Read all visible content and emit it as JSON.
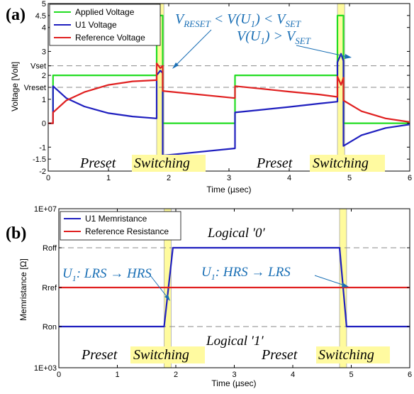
{
  "chart_data": [
    {
      "type": "line",
      "panel_label": "(a)",
      "xlabel": "Time (µsec)",
      "ylabel": "Voltage [Volt]",
      "xlim": [
        0,
        6
      ],
      "ylim": [
        -2,
        5
      ],
      "x_ticks": [
        "0",
        "1",
        "2",
        "3",
        "4",
        "5",
        "6"
      ],
      "y_ticks": [
        {
          "label": "5",
          "value": 5
        },
        {
          "label": "4.5",
          "value": 4.5
        },
        {
          "label": "4",
          "value": 4
        },
        {
          "label": "3",
          "value": 3
        },
        {
          "label": "Vset",
          "value": 2.4
        },
        {
          "label": "2",
          "value": 2
        },
        {
          "label": "Vreset",
          "value": 1.5
        },
        {
          "label": "1",
          "value": 1
        },
        {
          "label": "0",
          "value": 0
        },
        {
          "label": "-1",
          "value": -1
        },
        {
          "label": "-1.5",
          "value": -1.5
        },
        {
          "label": "-2",
          "value": -2
        }
      ],
      "dashed_lines": [
        2.4,
        1.5
      ],
      "highlight_spans": [
        [
          1.8,
          1.92
        ],
        [
          4.8,
          4.92
        ]
      ],
      "legend": "top-left",
      "series": [
        {
          "name": "Applied Voltage",
          "color": "#22dd22",
          "x": [
            0,
            0.08,
            0.08,
            1.8,
            1.8,
            1.9,
            1.9,
            3.1,
            3.1,
            4.8,
            4.8,
            4.9,
            4.9,
            6.0
          ],
          "y": [
            0,
            0,
            2,
            2,
            4.5,
            4.5,
            0,
            0,
            2,
            2,
            4.5,
            4.5,
            0,
            0
          ]
        },
        {
          "name": "U1 Voltage",
          "color": "#1f1fbf",
          "x": [
            0,
            0.08,
            0.08,
            0.3,
            0.6,
            1.0,
            1.4,
            1.8,
            1.8,
            1.86,
            1.9,
            1.9,
            3.1,
            3.1,
            3.5,
            4.0,
            4.5,
            4.8,
            4.8,
            4.86,
            4.9,
            4.9,
            5.2,
            5.6,
            6.0
          ],
          "y": [
            0,
            0,
            1.55,
            1.05,
            0.7,
            0.42,
            0.28,
            0.2,
            2.0,
            2.2,
            2.1,
            -1.35,
            -1.05,
            0.45,
            0.55,
            0.68,
            0.82,
            0.9,
            2.55,
            2.9,
            2.6,
            -0.95,
            -0.5,
            -0.2,
            -0.05
          ]
        },
        {
          "name": "Reference Voltage",
          "color": "#e02020",
          "x": [
            0,
            0.08,
            0.08,
            0.3,
            0.6,
            1.0,
            1.4,
            1.8,
            1.8,
            1.86,
            1.9,
            1.9,
            3.1,
            3.1,
            3.5,
            4.0,
            4.5,
            4.8,
            4.8,
            4.86,
            4.9,
            4.9,
            5.2,
            5.6,
            6.0
          ],
          "y": [
            0,
            0,
            0.45,
            0.95,
            1.3,
            1.6,
            1.75,
            1.8,
            2.5,
            2.3,
            2.4,
            1.35,
            1.05,
            1.55,
            1.45,
            1.32,
            1.2,
            1.1,
            1.95,
            1.6,
            1.9,
            0.95,
            0.5,
            0.2,
            0.05
          ]
        }
      ],
      "annotations": [
        {
          "id": "ineq1",
          "parts": [
            "V",
            "RESET",
            " < V(U",
            "1",
            ") < V",
            "SET"
          ]
        },
        {
          "id": "ineq2",
          "parts": [
            "V(U",
            "1",
            ") > V",
            "SET"
          ]
        }
      ],
      "phase_labels": [
        "Preset",
        "Switching",
        "Preset",
        "Switching"
      ]
    },
    {
      "type": "line",
      "panel_label": "(b)",
      "xlabel": "Time (µsec)",
      "ylabel": "Memristance [Ω]",
      "xlim": [
        0,
        6
      ],
      "y_ticks": [
        {
          "label": "1E+07",
          "value": 4
        },
        {
          "label": "Roff",
          "value": 3
        },
        {
          "label": "Rref",
          "value": 2
        },
        {
          "label": "Ron",
          "value": 1
        },
        {
          "label": "1E+03",
          "value": 0
        }
      ],
      "x_ticks": [
        "0",
        "1",
        "2",
        "3",
        "4",
        "5",
        "6"
      ],
      "dashed_lines": [
        3,
        1
      ],
      "highlight_spans": [
        [
          1.8,
          1.92
        ],
        [
          4.8,
          4.92
        ]
      ],
      "legend": "top-left",
      "series": [
        {
          "name": "U1 Memristance",
          "color": "#1f1fbf",
          "x": [
            0,
            1.8,
            1.95,
            4.8,
            4.92,
            6.0
          ],
          "y": [
            1,
            1,
            3,
            3,
            1,
            1
          ]
        },
        {
          "name": "Reference Resistance",
          "color": "#e02020",
          "x": [
            0,
            6.0
          ],
          "y": [
            2,
            2
          ]
        }
      ],
      "annotations": [
        {
          "id": "trans1",
          "parts": [
            "U",
            "1",
            ": LRS → HRS"
          ]
        },
        {
          "id": "trans2",
          "parts": [
            "U",
            "1",
            ": HRS → LRS"
          ]
        },
        {
          "id": "logic0",
          "text": "Logical ′0′"
        },
        {
          "id": "logic1",
          "text": "Logical ′1′"
        }
      ],
      "phase_labels": [
        "Preset",
        "Switching",
        "Preset",
        "Switching"
      ]
    }
  ]
}
